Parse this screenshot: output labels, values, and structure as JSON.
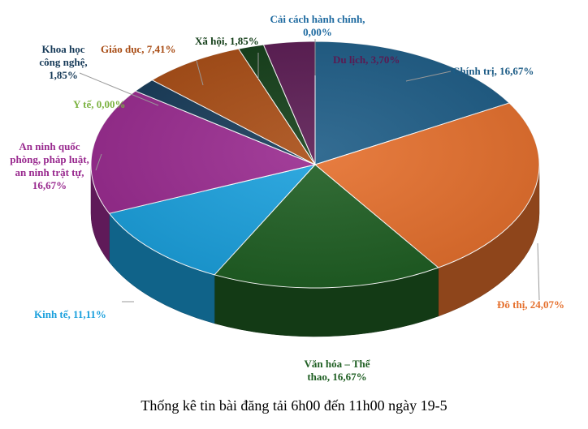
{
  "chart_data": {
    "type": "pie",
    "title": "Thống kê tin bài đăng tải 6h00 đến 11h00 ngày 19-5",
    "slices": [
      {
        "label": "Chính trị",
        "percent_label": "16,67%",
        "value": 16.67,
        "color": "#1d5c86"
      },
      {
        "label": "Đô thị",
        "percent_label": "24,07%",
        "value": 24.07,
        "color": "#e56f2c"
      },
      {
        "label": "Văn hóa – Thể thao",
        "percent_label": "16,67%",
        "value": 16.67,
        "color": "#1e5e22"
      },
      {
        "label": "Kinh tế",
        "percent_label": "11,11%",
        "value": 11.11,
        "color": "#1aa0dd"
      },
      {
        "label": "An ninh quốc phòng, pháp luật, an ninh trật tự",
        "percent_label": "16,67%",
        "value": 16.67,
        "color": "#992a8f"
      },
      {
        "label": "Y tế",
        "percent_label": "0,00%",
        "value": 0.0,
        "color": "#7cb342"
      },
      {
        "label": "Khoa học công nghệ",
        "percent_label": "1,85%",
        "value": 1.85,
        "color": "#163a58"
      },
      {
        "label": "Giáo dục",
        "percent_label": "7,41%",
        "value": 7.41,
        "color": "#a84c14"
      },
      {
        "label": "Xã hội",
        "percent_label": "1,85%",
        "value": 1.85,
        "color": "#123d17"
      },
      {
        "label": "Cải cách hành chính",
        "percent_label": "0,00%",
        "value": 0.0,
        "color": "#1e6aa0"
      },
      {
        "label": "Du lịch",
        "percent_label": "3,70%",
        "value": 3.7,
        "color": "#5a1a52"
      }
    ]
  },
  "labels": {
    "chinh_tri": "Chính trị, 16,67%",
    "do_thi": "Đô thị, 24,07%",
    "van_hoa": "Văn hóa – Thể\nthao, 16,67%",
    "kinh_te": "Kinh tế, 11,11%",
    "an_ninh": "An ninh quốc\nphòng, pháp luật,\nan ninh trật tự,\n16,67%",
    "y_te": "Y tế, 0,00%",
    "khoa_hoc": "Khoa học\ncông nghệ,\n1,85%",
    "giao_duc": "Giáo dục, 7,41%",
    "xa_hoi": "Xã hội, 1,85%",
    "cai_cach": "Cải cách hành chính,\n0,00%",
    "du_lich": "Du lịch, 3,70%"
  }
}
